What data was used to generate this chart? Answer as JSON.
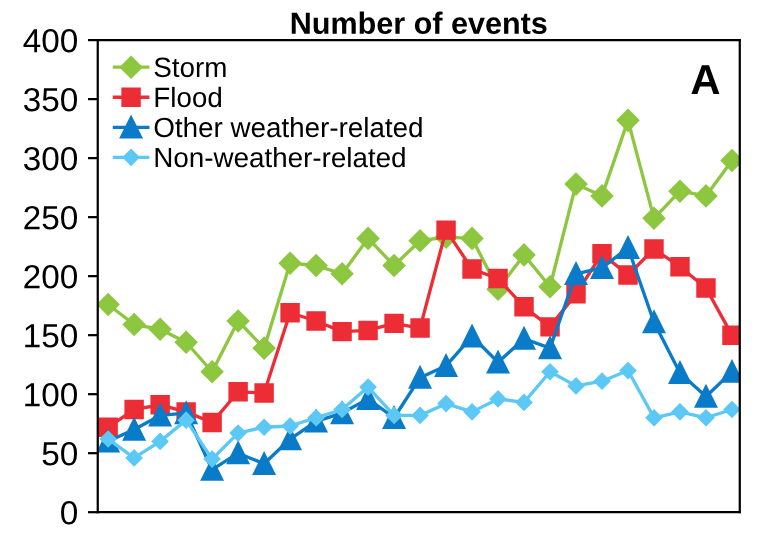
{
  "chart_data": {
    "type": "line",
    "title": "Number of events",
    "categories": [
      null,
      null,
      null,
      null,
      null,
      null,
      null,
      null,
      null,
      null,
      null,
      null,
      null,
      null,
      null,
      null,
      null,
      null,
      null,
      null,
      null,
      null,
      null,
      null,
      null
    ],
    "series": [
      {
        "name": "Storm",
        "color": "#8dc63f",
        "marker": "diamond",
        "values": [
          176,
          159,
          155,
          144,
          119,
          162,
          139,
          211,
          209,
          202,
          232,
          209,
          230,
          233,
          232,
          189,
          218,
          191,
          278,
          268,
          332,
          249,
          272,
          268,
          298
        ]
      },
      {
        "name": "Flood",
        "color": "#ed2d36",
        "marker": "square",
        "values": [
          72,
          87,
          91,
          85,
          76,
          102,
          101,
          169,
          162,
          153,
          154,
          160,
          156,
          239,
          206,
          198,
          174,
          157,
          185,
          219,
          201,
          223,
          208,
          190,
          150
        ]
      },
      {
        "name": "Other weather-related",
        "color": "#0a7bc8",
        "marker": "triangle",
        "values": [
          60,
          70,
          82,
          84,
          36,
          50,
          41,
          62,
          77,
          84,
          96,
          80,
          114,
          124,
          149,
          127,
          147,
          139,
          202,
          207,
          224,
          161,
          118,
          98,
          119
        ]
      },
      {
        "name": "Non-weather-related",
        "color": "#5bc8f5",
        "marker": "diamond",
        "values": [
          62,
          46,
          60,
          78,
          45,
          67,
          72,
          73,
          80,
          87,
          106,
          82,
          82,
          92,
          85,
          96,
          93,
          119,
          107,
          111,
          120,
          80,
          85,
          80,
          87
        ]
      }
    ],
    "ylim": [
      0,
      400
    ],
    "yticks": [
      0,
      50,
      100,
      150,
      200,
      250,
      300,
      350,
      400
    ],
    "tick_labels": "y",
    "grid": false,
    "legend": "top left",
    "line_style": "solid",
    "annotations": [
      "A"
    ]
  }
}
